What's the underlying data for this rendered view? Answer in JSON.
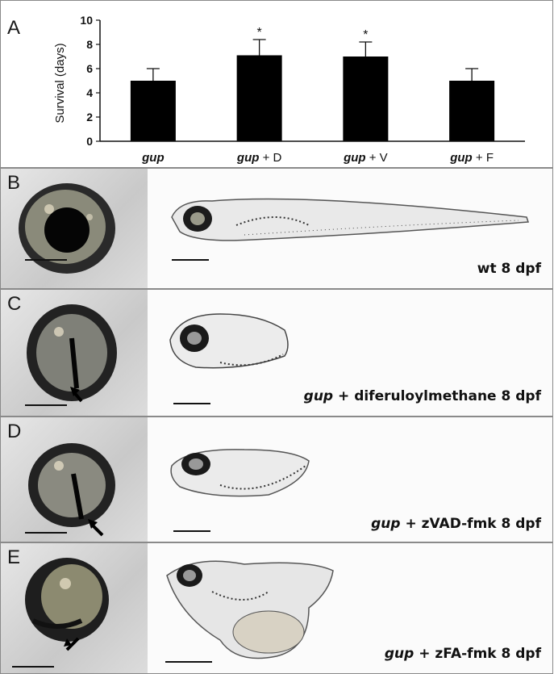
{
  "chart_data": {
    "type": "bar",
    "panel_label": "A",
    "categories": [
      {
        "italic": "gup",
        "suffix": ""
      },
      {
        "italic": "gup",
        "suffix": " + D"
      },
      {
        "italic": "gup",
        "suffix": " + V"
      },
      {
        "italic": "gup",
        "suffix": " + F"
      }
    ],
    "values": [
      5.0,
      7.1,
      7.0,
      5.0
    ],
    "errors": [
      1.0,
      1.3,
      1.2,
      1.0
    ],
    "significance": [
      "",
      "*",
      "*",
      ""
    ],
    "ylabel": "Survival (days)",
    "ylim": [
      0,
      10
    ],
    "yticks": [
      0,
      2,
      4,
      6,
      8,
      10
    ],
    "bar_color": "#000000",
    "grid": false
  },
  "panels": [
    {
      "letter": "B",
      "caption_italic": "",
      "caption_rest": "wt 8 dpf",
      "condition": "wt",
      "eye_arrow": false
    },
    {
      "letter": "C",
      "caption_italic": "gup",
      "caption_rest": " + diferuloylmethane  8 dpf",
      "condition": "gup-diferuloylmethane",
      "eye_arrow": true
    },
    {
      "letter": "D",
      "caption_italic": "gup",
      "caption_rest": " + zVAD-fmk  8 dpf",
      "condition": "gup-zvad",
      "eye_arrow": true
    },
    {
      "letter": "E",
      "caption_italic": "gup",
      "caption_rest": " + zFA-fmk  8 dpf",
      "condition": "gup-zfa",
      "eye_arrow": true
    }
  ]
}
